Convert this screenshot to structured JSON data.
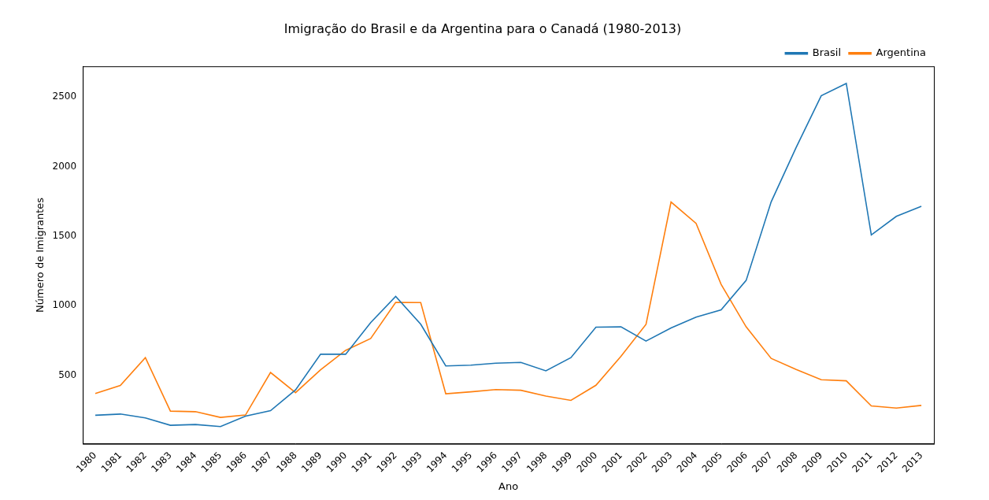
{
  "chart_data": {
    "type": "line",
    "title": "Imigração do Brasil e da Argentina para o Canadá (1980-2013)",
    "x_label": "Ano",
    "y_label": "Número de Imigrantes",
    "categories": [
      "1980",
      "1981",
      "1982",
      "1983",
      "1984",
      "1985",
      "1986",
      "1987",
      "1988",
      "1989",
      "1990",
      "1991",
      "1992",
      "1993",
      "1994",
      "1995",
      "1996",
      "1997",
      "1998",
      "1999",
      "2000",
      "2001",
      "2002",
      "2003",
      "2004",
      "2005",
      "2006",
      "2007",
      "2008",
      "2009",
      "2010",
      "2011",
      "2012",
      "2013"
    ],
    "series": [
      {
        "name": "Brasil",
        "color": "#1f77b4",
        "values": [
          211,
          220,
          192,
          139,
          145,
          130,
          205,
          244,
          394,
          650,
          650,
          877,
          1066,
          866,
          566,
          572,
          586,
          591,
          531,
          626,
          845,
          847,
          745,
          839,
          917,
          969,
          1181,
          1746,
          2138,
          2509,
          2598,
          1508,
          1642,
          1714
        ]
      },
      {
        "name": "Argentina",
        "color": "#ff7f0e",
        "values": [
          368,
          426,
          626,
          241,
          237,
          196,
          213,
          519,
          374,
          538,
          678,
          763,
          1023,
          1022,
          366,
          380,
          396,
          391,
          349,
          318,
          427,
          635,
          865,
          1745,
          1591,
          1153,
          847,
          620,
          540,
          467,
          459,
          278,
          263,
          282
        ]
      }
    ],
    "ylim": [
      6,
      2721
    ],
    "yticks": [
      500,
      1000,
      1500,
      2000,
      2500
    ],
    "grid": false,
    "legend": "upper right"
  }
}
